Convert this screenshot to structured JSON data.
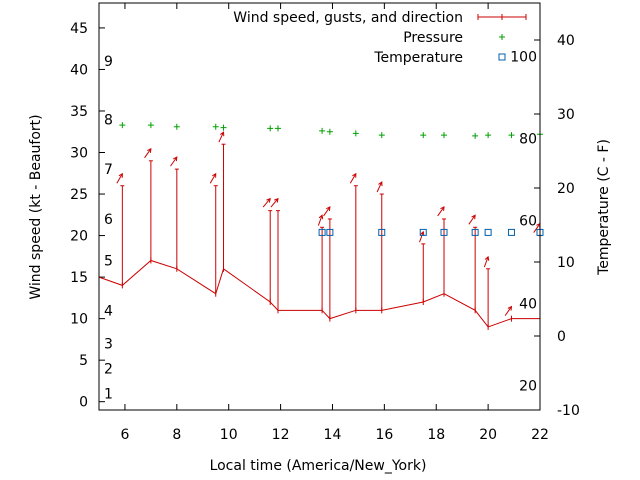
{
  "chart_data": {
    "type": "line",
    "xlabel": "Local time (America/New_York)",
    "ylabel_left": "Wind speed (kt - Beaufort)",
    "ylabel_right": "Temperature (C - F)",
    "xlim": [
      5,
      22
    ],
    "ylim_left": [
      -1,
      48
    ],
    "ylim_right": [
      -10,
      45
    ],
    "x_ticks": [
      6,
      8,
      10,
      12,
      14,
      16,
      18,
      20,
      22
    ],
    "y_ticks_left": [
      0,
      5,
      10,
      15,
      20,
      25,
      30,
      35,
      40,
      45
    ],
    "y_ticks_right": [
      -10,
      0,
      10,
      20,
      30,
      40
    ],
    "beaufort_labels": [
      {
        "label": "1",
        "y": 1.0
      },
      {
        "label": "2",
        "y": 4.0
      },
      {
        "label": "3",
        "y": 7.0
      },
      {
        "label": "4",
        "y": 11.0
      },
      {
        "label": "5",
        "y": 17.0
      },
      {
        "label": "6",
        "y": 22.0
      },
      {
        "label": "7",
        "y": 28.0
      },
      {
        "label": "8",
        "y": 34.0
      },
      {
        "label": "9",
        "y": 41.0
      }
    ],
    "fahrenheit_labels": [
      {
        "label": "20",
        "y": -6.7
      },
      {
        "label": "40",
        "y": 4.4
      },
      {
        "label": "60",
        "y": 15.6
      },
      {
        "label": "80",
        "y": 26.7
      },
      {
        "label": "100",
        "y": 37.8
      }
    ],
    "legend": {
      "placement": "top-right",
      "entries": [
        "Wind speed, gusts, and direction",
        "Pressure",
        "Temperature"
      ]
    },
    "series": [
      {
        "name": "Wind speed, gusts, and direction",
        "color": "#cc0000",
        "points": [
          {
            "x": 5.0,
            "speed": 15,
            "gust": null,
            "dir": null
          },
          {
            "x": 5.9,
            "speed": 14,
            "gust": 26,
            "dir": 210
          },
          {
            "x": 7.0,
            "speed": 17,
            "gust": 29,
            "dir": 215
          },
          {
            "x": 8.0,
            "speed": 16,
            "gust": 28,
            "dir": 215
          },
          {
            "x": 9.5,
            "speed": 13,
            "gust": 26,
            "dir": 210
          },
          {
            "x": 9.8,
            "speed": 16,
            "gust": 31,
            "dir": 205
          },
          {
            "x": 11.6,
            "speed": 12,
            "gust": 23,
            "dir": 220
          },
          {
            "x": 11.9,
            "speed": 11,
            "gust": 23,
            "dir": 220
          },
          {
            "x": 13.6,
            "speed": 11,
            "gust": 21,
            "dir": 200
          },
          {
            "x": 13.9,
            "speed": 10,
            "gust": 22,
            "dir": 215
          },
          {
            "x": 14.9,
            "speed": 11,
            "gust": 26,
            "dir": 210
          },
          {
            "x": 15.9,
            "speed": 11,
            "gust": 25,
            "dir": 205
          },
          {
            "x": 17.5,
            "speed": 12,
            "gust": 19,
            "dir": 200
          },
          {
            "x": 18.3,
            "speed": 13,
            "gust": 22,
            "dir": 215
          },
          {
            "x": 19.5,
            "speed": 11,
            "gust": 21,
            "dir": 215
          },
          {
            "x": 20.0,
            "speed": 9,
            "gust": 16,
            "dir": 200
          },
          {
            "x": 20.9,
            "speed": 10,
            "gust": null,
            "dir": 215
          },
          {
            "x": 22.0,
            "speed": 10,
            "gust": 20,
            "dir": 215
          }
        ]
      },
      {
        "name": "Pressure",
        "color": "#00a000",
        "marker": "+",
        "x": [
          5.9,
          7.0,
          8.0,
          9.5,
          9.8,
          11.6,
          11.9,
          13.6,
          13.9,
          14.9,
          15.9,
          17.5,
          18.3,
          19.5,
          20.0,
          20.9,
          22.0
        ],
        "y": [
          33.3,
          33.3,
          33.1,
          33.1,
          33.0,
          32.9,
          32.9,
          32.6,
          32.5,
          32.3,
          32.1,
          32.1,
          32.1,
          32.0,
          32.1,
          32.1,
          32.2
        ]
      },
      {
        "name": "Temperature",
        "color": "#0060ad",
        "marker": "square",
        "x": [
          13.6,
          13.9,
          15.9,
          17.5,
          18.3,
          19.5,
          20.0,
          20.9,
          22.0
        ],
        "y": [
          14.0,
          14.0,
          14.0,
          14.0,
          14.0,
          14.0,
          14.0,
          14.0,
          14.0
        ]
      }
    ]
  }
}
